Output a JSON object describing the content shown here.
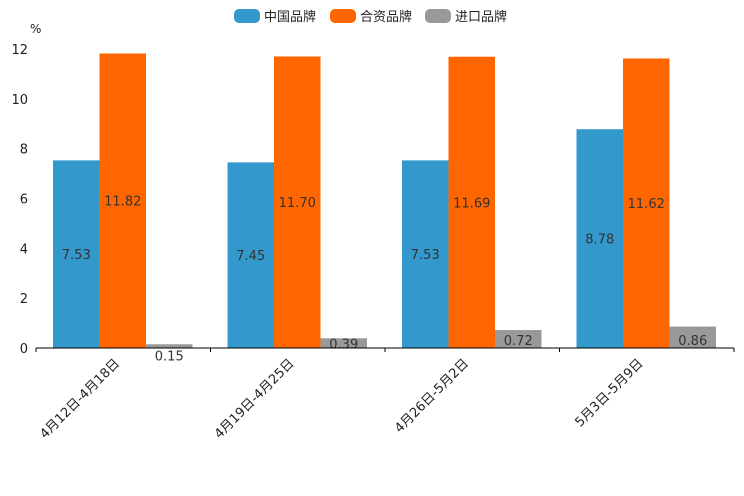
{
  "chart_data": {
    "type": "bar",
    "title": "",
    "xlabel": "",
    "ylabel": "%",
    "ylim": [
      0,
      12
    ],
    "yticks": [
      0,
      2,
      4,
      6,
      8,
      10,
      12
    ],
    "grid": false,
    "legend_position": "top-center",
    "categories": [
      "4月12日-4月18日",
      "4月19日-4月25日",
      "4月26日-5月2日",
      "5月3日-5月9日"
    ],
    "series": [
      {
        "name": "中国品牌",
        "color": "#3399cc",
        "values": [
          7.53,
          7.45,
          7.53,
          8.78
        ],
        "labels": [
          "7.53",
          "7.45",
          "7.53",
          "8.78"
        ]
      },
      {
        "name": "合资品牌",
        "color": "#ff6600",
        "values": [
          11.82,
          11.7,
          11.69,
          11.62
        ],
        "labels": [
          "11.82",
          "11.70",
          "11.69",
          "11.62"
        ]
      },
      {
        "name": "进口品牌",
        "color": "#999999",
        "values": [
          0.15,
          0.39,
          0.72,
          0.86
        ],
        "labels": [
          "0.15",
          "0.39",
          "0.72",
          "0.86"
        ]
      }
    ]
  }
}
